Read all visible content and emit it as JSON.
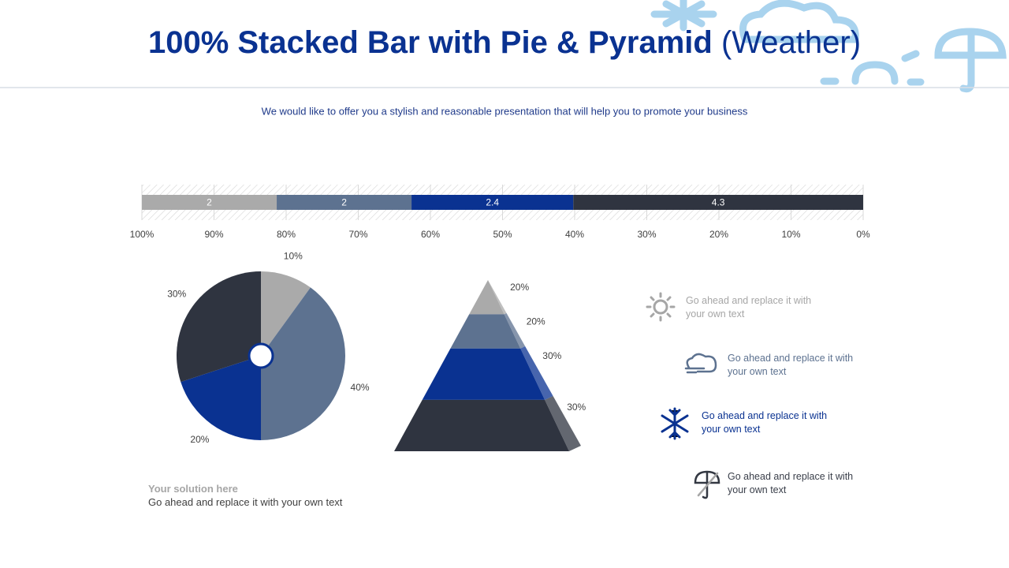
{
  "title": "100% Stacked Bar with Pie & Pyramid",
  "title_suffix": "(Weather)",
  "subtitle": "We would like to offer you a stylish and reasonable presentation that will help you to promote your business",
  "chart_data": [
    {
      "type": "stacked_bar",
      "series": [
        {
          "color": "#aaaaaa",
          "values": [
            2
          ]
        },
        {
          "color": "#5d7290",
          "values": [
            2
          ]
        },
        {
          "color": "#0a3291",
          "values": [
            2.4
          ]
        },
        {
          "color": "#2f3440",
          "values": [
            4.3
          ]
        }
      ],
      "xlim": [
        100,
        0
      ],
      "xticks": [
        {
          "value": 100,
          "label": "100%"
        },
        {
          "value": 90,
          "label": "90%"
        },
        {
          "value": 80,
          "label": "80%"
        },
        {
          "value": 70,
          "label": "70%"
        },
        {
          "value": 60,
          "label": "60%"
        },
        {
          "value": 50,
          "label": "50%"
        },
        {
          "value": 40,
          "label": "40%"
        },
        {
          "value": 30,
          "label": "30%"
        },
        {
          "value": 20,
          "label": "20%"
        },
        {
          "value": 10,
          "label": "10%"
        },
        {
          "value": 0,
          "label": "0%"
        }
      ],
      "grid": true
    },
    {
      "type": "pie",
      "values": [
        10,
        40,
        20,
        30
      ],
      "value_labels": [
        "10%",
        "40%",
        "20%",
        "30%"
      ],
      "colors": [
        "#aaaaaa",
        "#5d7290",
        "#0a3291",
        "#2f3440"
      ]
    },
    {
      "type": "pyramid",
      "values": [
        20,
        20,
        30,
        30
      ],
      "value_labels": [
        "20%",
        "20%",
        "30%",
        "30%"
      ],
      "colors": [
        "#aaaaaa",
        "#5d7290",
        "#0a3291",
        "#2f3440"
      ]
    }
  ],
  "legend_items": [
    {
      "text": "Go ahead and replace it with your own text",
      "color": "#a6a6a6"
    },
    {
      "text": "Go ahead and replace it with your own text",
      "color": "#5d7290"
    },
    {
      "text": "Go ahead and replace it with your own text",
      "color": "#0a3291"
    },
    {
      "text": "Go ahead and replace it with your own text",
      "color": "#3a3f4a"
    }
  ],
  "solution": {
    "heading": "Your solution here",
    "text": "Go ahead and replace it with your own text"
  }
}
